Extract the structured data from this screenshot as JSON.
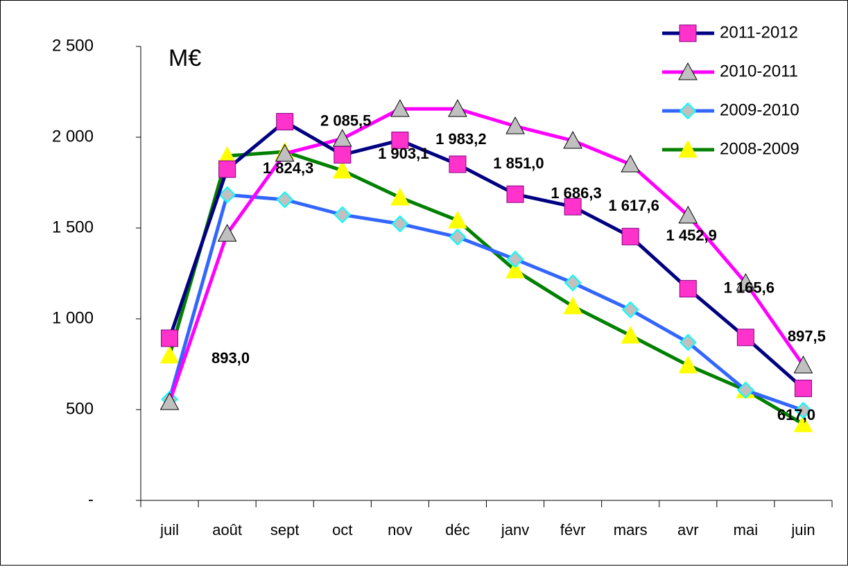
{
  "chart_data": {
    "type": "line",
    "unit_label": "M€",
    "categories": [
      "juil",
      "août",
      "sept",
      "oct",
      "nov",
      "déc",
      "janv",
      "févr",
      "mars",
      "avr",
      "mai",
      "juin"
    ],
    "ylim": [
      0,
      2500
    ],
    "yticks": [
      {
        "value": 0,
        "label": "-"
      },
      500,
      {
        "value": 1000,
        "label": "1 000"
      },
      {
        "value": 1500,
        "label": "1 500"
      },
      {
        "value": 2000,
        "label": "2 000"
      },
      {
        "value": 2500,
        "label": "2 500"
      }
    ],
    "legend": "top-right",
    "series": [
      {
        "name": "2011-2012",
        "color": "#000080",
        "marker": "square",
        "marker_color": "#ff33cc",
        "values": [
          893.0,
          1824.3,
          2085.5,
          1903.1,
          1983.2,
          1851.0,
          1686.3,
          1617.6,
          1452.9,
          1165.6,
          897.5,
          617.0
        ],
        "value_labels": [
          "893,0",
          "1 824,3",
          "2 085,5",
          "1 903,1",
          "1 983,2",
          "1 851,0",
          "1 686,3",
          "1 617,6",
          "1 452,9",
          "1 165,6",
          "897,5",
          "617,0"
        ]
      },
      {
        "name": "2010-2011",
        "color": "#ff00ff",
        "marker": "triangle",
        "marker_color": "#c0c0c0",
        "values": [
          542,
          1469,
          1910,
          1992,
          2156,
          2156,
          2061,
          1981,
          1851,
          1569,
          1198,
          744
        ]
      },
      {
        "name": "2009-2010",
        "color": "#3366ff",
        "marker": "diamond",
        "marker_color": "#c0c0c0",
        "values": [
          557,
          1683,
          1656,
          1573,
          1523,
          1450,
          1328,
          1198,
          1050,
          870,
          607,
          496
        ]
      },
      {
        "name": "2008-2009",
        "color": "#008000",
        "marker": "triangle",
        "marker_color": "#ffff00",
        "values": [
          798,
          1897,
          1920,
          1817,
          1668,
          1542,
          1267,
          1069,
          908,
          744,
          607,
          420
        ]
      }
    ]
  }
}
